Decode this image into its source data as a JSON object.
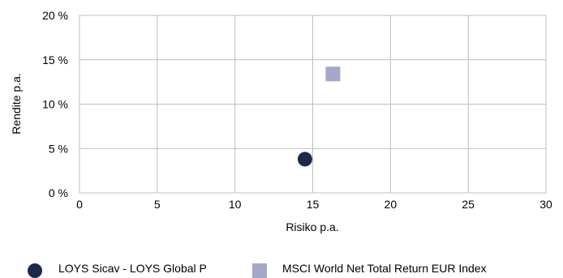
{
  "chart_data": {
    "type": "scatter",
    "title": "",
    "xlabel": "Risiko p.a.",
    "ylabel": "Rendite p.a.",
    "xlim": [
      0,
      30
    ],
    "ylim": [
      0,
      20
    ],
    "xticks": [
      0,
      5,
      10,
      15,
      20,
      25,
      30
    ],
    "xtick_labels": [
      "0",
      "5",
      "10",
      "15",
      "20",
      "25",
      "30"
    ],
    "yticks": [
      0,
      5,
      10,
      15,
      20
    ],
    "ytick_labels": [
      "0 %",
      "5 %",
      "10 %",
      "15 %",
      "20 %"
    ],
    "grid": true,
    "legend_position": "bottom",
    "series": [
      {
        "name": "LOYS Sicav - LOYS Global P",
        "marker": "circle",
        "color": "#1b2a4a",
        "points": [
          {
            "x": 14.5,
            "y": 3.8
          }
        ]
      },
      {
        "name": "MSCI World Net Total Return EUR Index",
        "marker": "square",
        "color": "#a5a7c9",
        "points": [
          {
            "x": 16.3,
            "y": 13.4
          }
        ]
      }
    ]
  }
}
